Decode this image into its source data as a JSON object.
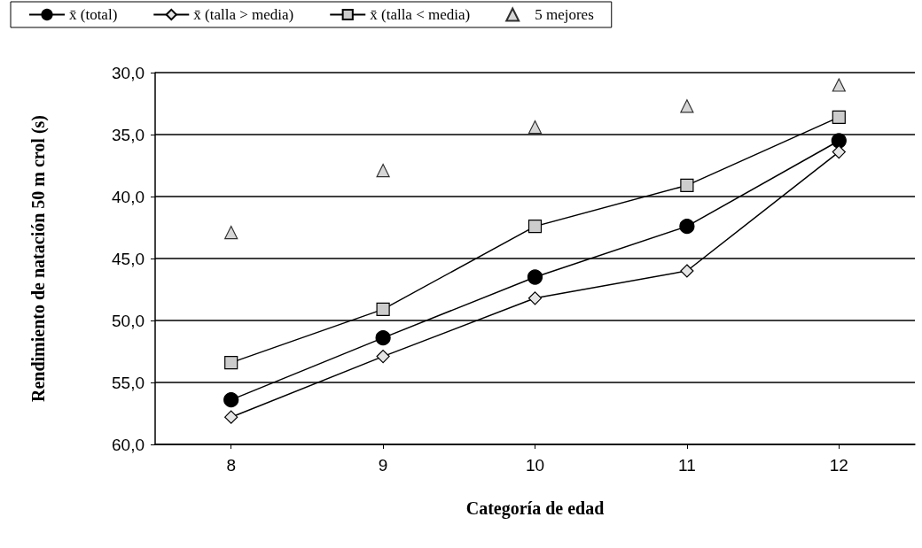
{
  "chart_data": {
    "type": "line",
    "xlabel": "Categoría de edad",
    "ylabel": "Rendimiento de natación 50 m crol (s)",
    "categories": [
      "8",
      "9",
      "10",
      "11",
      "12"
    ],
    "series": [
      {
        "name": "x̄ (total)",
        "color": "#000000",
        "marker": "circle",
        "values": [
          56.4,
          51.4,
          46.5,
          42.4,
          35.5
        ]
      },
      {
        "name": "x̄ (talla > media)",
        "color": "#e6e6e6",
        "marker": "diamond",
        "values": [
          57.8,
          52.9,
          48.2,
          46.0,
          36.4
        ]
      },
      {
        "name": "x̄ (talla < media)",
        "color": "#cccccc",
        "marker": "square",
        "values": [
          53.4,
          49.1,
          42.4,
          39.1,
          33.6
        ]
      },
      {
        "name": "5 mejores",
        "type": "scatter",
        "color": "#cccccc",
        "marker": "triangle",
        "values": [
          42.9,
          37.9,
          34.4,
          32.7,
          31.0
        ]
      }
    ],
    "ylim": [
      60,
      30
    ],
    "yticks": [
      {
        "value": 30,
        "label": "30,0"
      },
      {
        "value": 35,
        "label": "35,0"
      },
      {
        "value": 40,
        "label": "40,0"
      },
      {
        "value": 45,
        "label": "45,0"
      },
      {
        "value": 50,
        "label": "50,0"
      },
      {
        "value": 55,
        "label": "55,0"
      },
      {
        "value": 60,
        "label": "60,0"
      }
    ],
    "grid": "y",
    "legend": "top"
  }
}
